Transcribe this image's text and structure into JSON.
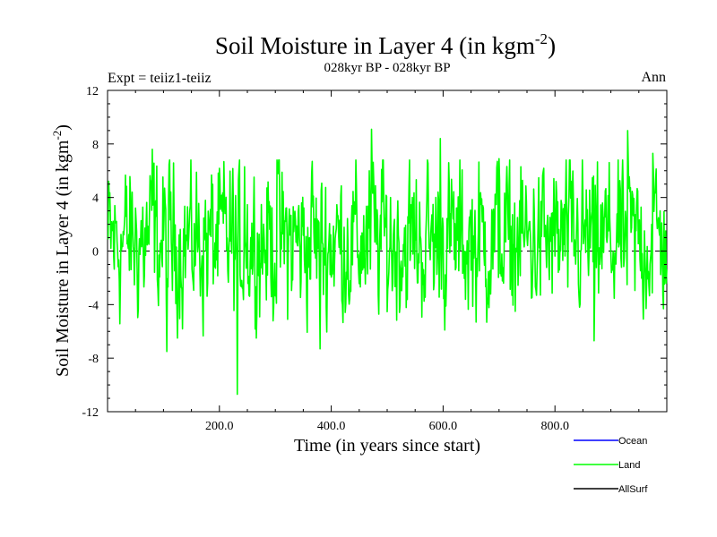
{
  "chart_data": {
    "type": "line",
    "title": "Soil Moisture in Layer 4 (in kgm",
    "title_sup": "-2",
    "title_close": ")",
    "subtitle": "028kyr BP - 028kyr BP",
    "left_label": "Expt = teiiz1-teiiz",
    "right_label": "Ann",
    "xlabel": "Time (in years since start)",
    "ylabel": "Soil Moisture in Layer 4 (in kgm",
    "ylabel_sup": "-2",
    "ylabel_close": ")",
    "xlim": [
      0,
      1000
    ],
    "ylim": [
      -12,
      12
    ],
    "x_ticks": [
      200,
      400,
      600,
      800
    ],
    "x_tick_labels": [
      "200.0",
      "400.0",
      "600.0",
      "800.0"
    ],
    "y_ticks": [
      -12,
      -8,
      -4,
      0,
      4,
      8,
      12
    ],
    "y_tick_labels": [
      "-12",
      "-8",
      "-4",
      "0",
      "4",
      "8",
      "12"
    ],
    "zero_line": true,
    "legend": [
      {
        "name": "Ocean",
        "color": "#0000ff"
      },
      {
        "name": "Land",
        "color": "#00ff00"
      },
      {
        "name": "AllSurf",
        "color": "#000000"
      }
    ],
    "series": [
      {
        "name": "Land",
        "color": "#00ff00",
        "x_start": 1,
        "x_step": 1,
        "n_points": 1000,
        "y_approx_range": [
          -10.7,
          9.1
        ],
        "anchor_points": [
          {
            "x": 80,
            "y": 7.6
          },
          {
            "x": 106,
            "y": -7.5
          },
          {
            "x": 232,
            "y": -10.7
          },
          {
            "x": 245,
            "y": 6.3
          },
          {
            "x": 303,
            "y": 6.8
          },
          {
            "x": 366,
            "y": 6.7
          },
          {
            "x": 380,
            "y": -7.3
          },
          {
            "x": 472,
            "y": 9.1
          },
          {
            "x": 490,
            "y": 6.1
          },
          {
            "x": 595,
            "y": 8.4
          },
          {
            "x": 700,
            "y": 6.9
          },
          {
            "x": 870,
            "y": -6.7
          },
          {
            "x": 930,
            "y": 9.0
          },
          {
            "x": 975,
            "y": 7.3
          }
        ]
      }
    ]
  }
}
